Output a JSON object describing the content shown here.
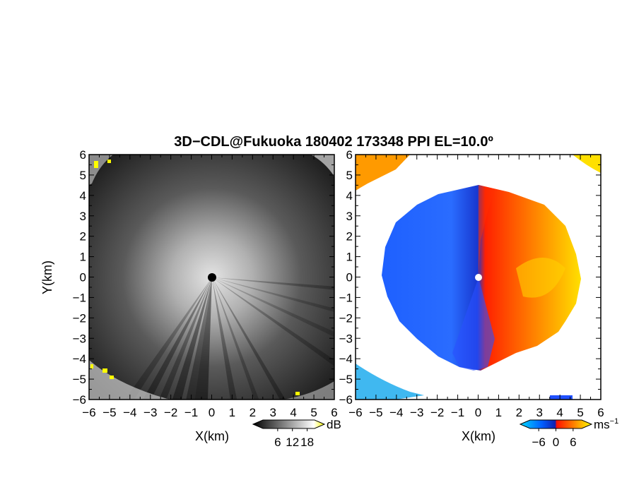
{
  "title": "3D−CDL@Fukuoka 180402 173348 PPI EL=10.0º",
  "chart_data": [
    {
      "type": "heatmap",
      "panel": "left",
      "field": "reflectivity",
      "xlabel": "X(km)",
      "ylabel": "Y(km)",
      "xlim": [
        -6,
        6
      ],
      "ylim": [
        -6,
        6
      ],
      "xticks": [
        "−6",
        "−5",
        "−4",
        "−3",
        "−2",
        "−1",
        "0",
        "1",
        "2",
        "3",
        "4",
        "5",
        "6"
      ],
      "yticks": [
        "6",
        "5",
        "4",
        "3",
        "2",
        "1",
        "0",
        "−1",
        "−2",
        "−3",
        "−4",
        "−5",
        "−6"
      ],
      "colorbar": {
        "unit": "dB",
        "tick_labels": [
          "6",
          "12",
          "18"
        ],
        "ticks": [
          6,
          12,
          18
        ],
        "range": [
          0,
          21
        ],
        "colors": [
          "#000000",
          "#ffffff",
          "#ffff00"
        ]
      },
      "grid": false
    },
    {
      "type": "heatmap",
      "panel": "right",
      "field": "doppler velocity",
      "xlabel": "X(km)",
      "xlim": [
        -6,
        6
      ],
      "ylim": [
        -6,
        6
      ],
      "xticks": [
        "−6",
        "−5",
        "−4",
        "−3",
        "−2",
        "−1",
        "0",
        "1",
        "2",
        "3",
        "4",
        "5",
        "6"
      ],
      "yticks": [
        "6",
        "5",
        "4",
        "3",
        "2",
        "1",
        "0",
        "−1",
        "−2",
        "−3",
        "−4",
        "−5",
        "−6"
      ],
      "colorbar": {
        "unit": "ms",
        "unit_exponent": "−1",
        "tick_labels": [
          "−6",
          "0",
          "6"
        ],
        "ticks": [
          -6,
          0,
          6
        ],
        "range": [
          -9,
          9
        ],
        "colors": [
          "#00c8ff",
          "#0050ff",
          "#1020c0",
          "#ff1000",
          "#ff8000",
          "#ffff00"
        ]
      },
      "grid": false
    }
  ]
}
